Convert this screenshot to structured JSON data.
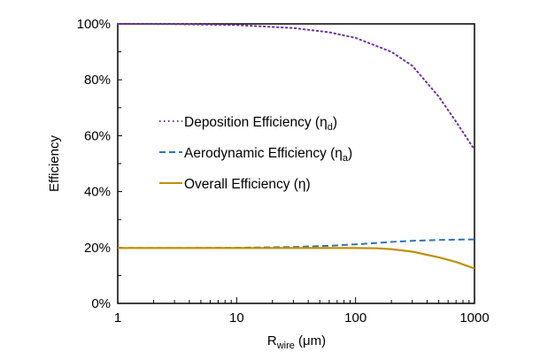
{
  "chart_data": {
    "type": "line",
    "title": "",
    "xlabel": "R",
    "xlabel_sub": "wire",
    "xlabel_unit": " (μm)",
    "ylabel": "Efficiency",
    "xscale": "log",
    "xlim": [
      1,
      1000
    ],
    "ylim": [
      0,
      100
    ],
    "x_ticks": [
      1,
      10,
      100,
      1000
    ],
    "x_tick_labels": [
      "1",
      "10",
      "100",
      "1000"
    ],
    "y_ticks": [
      0,
      20,
      40,
      60,
      80,
      100
    ],
    "y_tick_labels": [
      "0%",
      "20%",
      "40%",
      "60%",
      "80%",
      "100%"
    ],
    "grid": false,
    "legend_position": "center-left",
    "series": [
      {
        "name": "Deposition Efficiency (η",
        "sub": "d",
        "close": ")",
        "color": "#7030A0",
        "style": "dotted",
        "x": [
          1,
          3,
          10,
          30,
          60,
          100,
          200,
          300,
          500,
          700,
          1000
        ],
        "y": [
          100,
          99.9,
          99.6,
          98.5,
          97,
          95,
          90,
          85,
          74,
          65,
          55
        ]
      },
      {
        "name": "Aerodynamic Efficiency (η",
        "sub": "a",
        "close": ")",
        "color": "#2E75B6",
        "style": "dashed",
        "x": [
          1,
          3,
          10,
          30,
          60,
          100,
          200,
          300,
          500,
          1000
        ],
        "y": [
          19.8,
          19.8,
          19.9,
          20.2,
          20.6,
          21.1,
          22,
          22.4,
          22.7,
          22.9
        ]
      },
      {
        "name": "Overall Efficiency (η",
        "sub": "",
        "close": ")",
        "color": "#BF9000",
        "style": "solid",
        "x": [
          1,
          10,
          50,
          100,
          150,
          200,
          300,
          500,
          700,
          1000
        ],
        "y": [
          19.8,
          19.8,
          19.8,
          19.8,
          19.7,
          19.4,
          18.5,
          16.5,
          14.8,
          12.5
        ]
      }
    ]
  }
}
